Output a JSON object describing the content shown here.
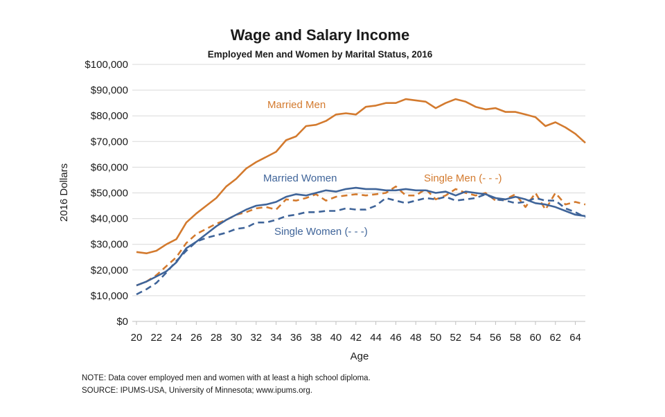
{
  "colors": {
    "married_men": "#D37A2E",
    "single_men": "#D37A2E",
    "married_women": "#3F6499",
    "single_women": "#3F6499",
    "grid": "#d9d9d9",
    "text": "#1a1a1a"
  },
  "footnotes": {
    "note": "NOTE: Data cover employed men and women with at least a high school diploma.",
    "source": "SOURCE: IPUMS-USA,  University of Minnesota; www.ipums.org."
  },
  "chart_data": {
    "type": "line",
    "title": "Wage and Salary Income",
    "subtitle": "Employed Men and Women by Marital Status, 2016",
    "xlabel": "Age",
    "ylabel": "2016 Dollars",
    "xlim": [
      20,
      65
    ],
    "ylim": [
      0,
      100000
    ],
    "x_ticks": [
      20,
      22,
      24,
      26,
      28,
      30,
      32,
      34,
      36,
      38,
      40,
      42,
      44,
      46,
      48,
      50,
      52,
      54,
      56,
      58,
      60,
      62,
      64
    ],
    "y_ticks": [
      0,
      10000,
      20000,
      30000,
      40000,
      50000,
      60000,
      70000,
      80000,
      90000,
      100000
    ],
    "y_tick_labels": [
      "$0",
      "$10,000",
      "$20,000",
      "$30,000",
      "$40,000",
      "$50,000",
      "$60,000",
      "$70,000",
      "$80,000",
      "$90,000",
      "$100,000"
    ],
    "grid": true,
    "legend": "inline labels",
    "x": [
      20,
      21,
      22,
      23,
      24,
      25,
      26,
      27,
      28,
      29,
      30,
      31,
      32,
      33,
      34,
      35,
      36,
      37,
      38,
      39,
      40,
      41,
      42,
      43,
      44,
      45,
      46,
      47,
      48,
      49,
      50,
      51,
      52,
      53,
      54,
      55,
      56,
      57,
      58,
      59,
      60,
      61,
      62,
      63,
      64,
      65
    ],
    "series": [
      {
        "name": "Married Men",
        "label_text": "Married Men",
        "color": "#D37A2E",
        "dash": "solid",
        "values": [
          27000,
          26500,
          27500,
          30000,
          32000,
          38500,
          42000,
          45000,
          48000,
          52500,
          55500,
          59500,
          62000,
          64000,
          66000,
          70500,
          72000,
          76000,
          76500,
          78000,
          80500,
          81000,
          80500,
          83500,
          84000,
          85000,
          85000,
          86500,
          86000,
          85500,
          83000,
          85000,
          86500,
          85500,
          83500,
          82500,
          83000,
          81500,
          81500,
          80500,
          79500,
          76000,
          77500,
          75500,
          73000,
          69500
        ]
      },
      {
        "name": "Single Men",
        "label_text": "Single Men (- - -)",
        "color": "#D37A2E",
        "dash": "dashed",
        "values": [
          14000,
          15500,
          18000,
          21500,
          25000,
          30500,
          34000,
          36000,
          38000,
          39500,
          41500,
          42500,
          44000,
          44500,
          43500,
          47500,
          47000,
          48000,
          49500,
          47000,
          48500,
          49000,
          49500,
          49000,
          49500,
          50000,
          52500,
          49000,
          49000,
          51500,
          47500,
          49000,
          51500,
          50000,
          49000,
          50000,
          47000,
          47500,
          49500,
          44500,
          50000,
          43500,
          50000,
          45500,
          46500,
          45500
        ]
      },
      {
        "name": "Married Women",
        "label_text": "Married Women",
        "color": "#3F6499",
        "dash": "solid",
        "values": [
          14000,
          15500,
          17500,
          19500,
          23000,
          28500,
          31000,
          34000,
          37000,
          39500,
          41500,
          43500,
          45000,
          45500,
          46500,
          48500,
          49500,
          49000,
          50000,
          51000,
          50500,
          51500,
          52000,
          51500,
          51500,
          51000,
          51000,
          51500,
          51000,
          51000,
          50000,
          50500,
          49000,
          50500,
          50000,
          49500,
          48000,
          47500,
          48500,
          47500,
          46000,
          45500,
          44500,
          43000,
          41500,
          41000
        ]
      },
      {
        "name": "Single Women",
        "label_text": "Single Women (- - -)",
        "color": "#3F6499",
        "dash": "dashed",
        "values": [
          10500,
          12500,
          15000,
          19000,
          23500,
          27500,
          31000,
          32500,
          33500,
          34500,
          36000,
          36500,
          38500,
          38500,
          39500,
          41000,
          41500,
          42500,
          42500,
          43000,
          43000,
          44000,
          43500,
          43500,
          45000,
          48000,
          47000,
          46000,
          47000,
          48000,
          47500,
          48500,
          47000,
          47500,
          48000,
          49500,
          47500,
          47000,
          46000,
          46500,
          48000,
          47000,
          47000,
          44000,
          42500,
          40500
        ]
      }
    ]
  }
}
